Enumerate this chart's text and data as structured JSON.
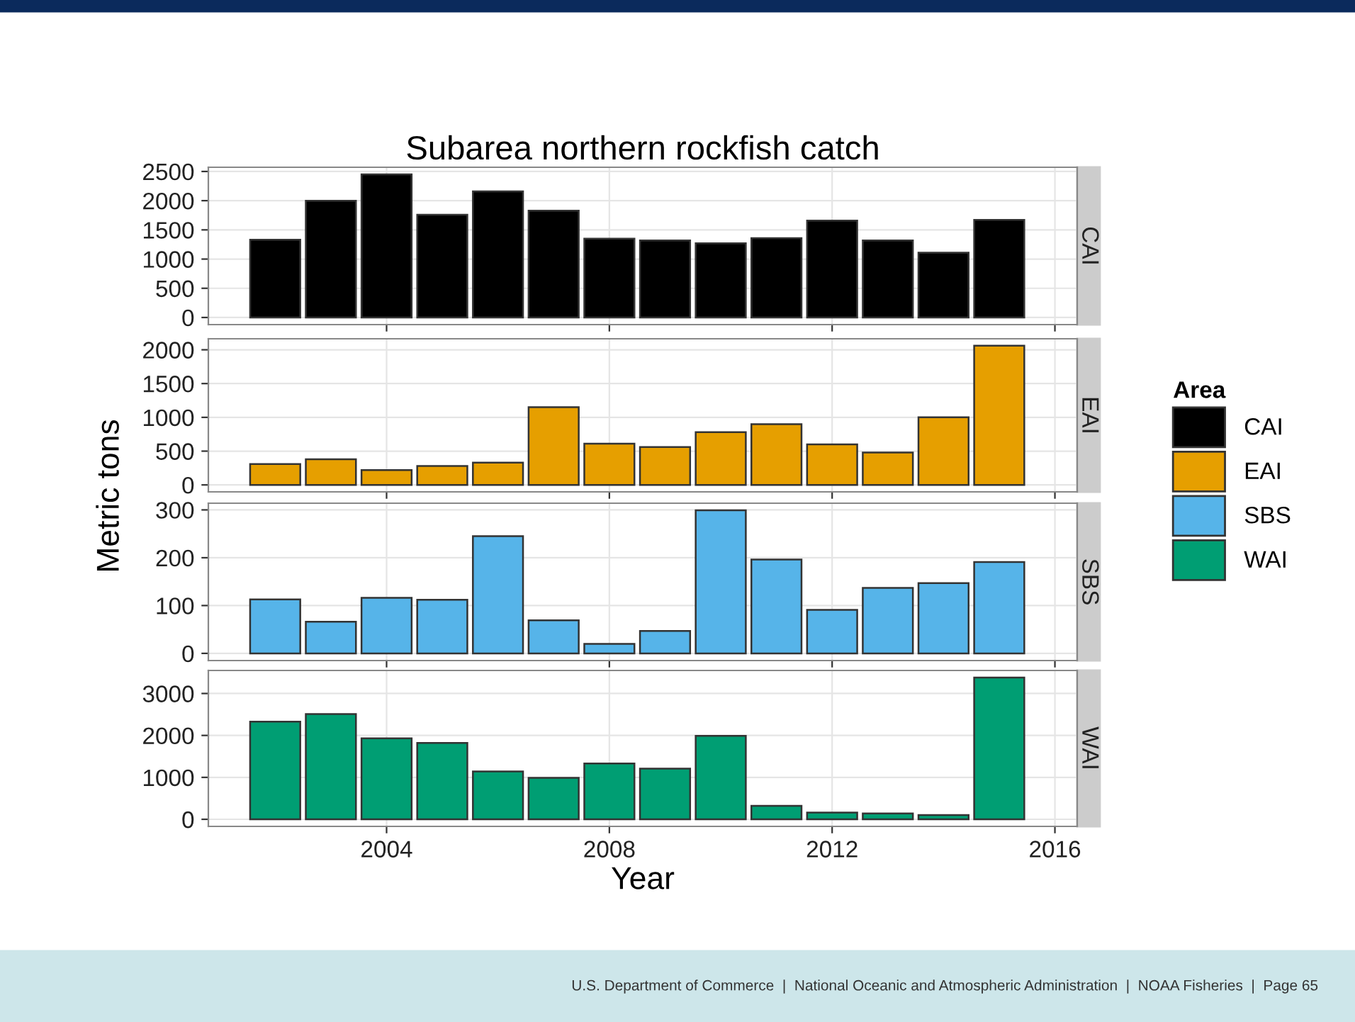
{
  "chart_data": [
    {
      "type": "bar",
      "title": "Subarea northern rockfish catch",
      "legend": "right",
      "legend_title": "Area",
      "x": [
        2002,
        2003,
        2004,
        2005,
        2006,
        2007,
        2008,
        2009,
        2010,
        2011,
        2012,
        2013,
        2014,
        2015
      ],
      "xlim": [
        2000.8,
        2016.4
      ],
      "xticks": [
        2004,
        2008,
        2012,
        2016
      ],
      "ylim": [
        -122,
        2572
      ],
      "yticks": [
        0,
        500,
        1000,
        1500,
        2000,
        2500
      ],
      "grid": true,
      "tick_labels": "y",
      "series": [
        {
          "name": "CAI",
          "color": "#000000",
          "values": [
            1330,
            2000,
            2450,
            1760,
            2160,
            1830,
            1350,
            1320,
            1270,
            1360,
            1660,
            1320,
            1110,
            1670
          ]
        }
      ]
    },
    {
      "type": "bar",
      "ylabel": "Metric tons",
      "x": [
        2002,
        2003,
        2004,
        2005,
        2006,
        2007,
        2008,
        2009,
        2010,
        2011,
        2012,
        2013,
        2014,
        2015
      ],
      "xlim": [
        2000.8,
        2016.4
      ],
      "xticks": [
        2004,
        2008,
        2012,
        2016
      ],
      "ylim": [
        -103,
        2163
      ],
      "yticks": [
        0,
        500,
        1000,
        1500,
        2000
      ],
      "grid": true,
      "tick_labels": "y",
      "series": [
        {
          "name": "EAI",
          "color": "#e69f00",
          "values": [
            310,
            380,
            220,
            280,
            330,
            1150,
            610,
            560,
            780,
            900,
            600,
            480,
            1000,
            2060
          ]
        }
      ]
    },
    {
      "type": "bar",
      "x": [
        2002,
        2003,
        2004,
        2005,
        2006,
        2007,
        2008,
        2009,
        2010,
        2011,
        2012,
        2013,
        2014,
        2015
      ],
      "xlim": [
        2000.8,
        2016.4
      ],
      "xticks": [
        2004,
        2008,
        2012,
        2016
      ],
      "ylim": [
        -15,
        314
      ],
      "yticks": [
        0,
        100,
        200,
        300
      ],
      "grid": true,
      "tick_labels": "y",
      "series": [
        {
          "name": "SBS",
          "color": "#56b4e9",
          "values": [
            113,
            66,
            116,
            112,
            245,
            69,
            20,
            47,
            299,
            196,
            91,
            137,
            147,
            191
          ]
        }
      ]
    },
    {
      "type": "bar",
      "xlabel": "Year",
      "x": [
        2002,
        2003,
        2004,
        2005,
        2006,
        2007,
        2008,
        2009,
        2010,
        2011,
        2012,
        2013,
        2014,
        2015
      ],
      "xlim": [
        2000.8,
        2016.4
      ],
      "xticks": [
        2004,
        2008,
        2012,
        2016
      ],
      "ylim": [
        -169,
        3549
      ],
      "yticks": [
        0,
        1000,
        2000,
        3000
      ],
      "grid": true,
      "annotations": [
        "U.S. Department of Commerce  |  National Oceanic and Atmospheric Administration  |  NOAA Fisheries  |  Page 65"
      ],
      "series": [
        {
          "name": "WAI",
          "color": "#009e73",
          "values": [
            2330,
            2510,
            1930,
            1820,
            1140,
            990,
            1330,
            1210,
            1990,
            320,
            160,
            140,
            100,
            3380
          ]
        }
      ]
    }
  ]
}
